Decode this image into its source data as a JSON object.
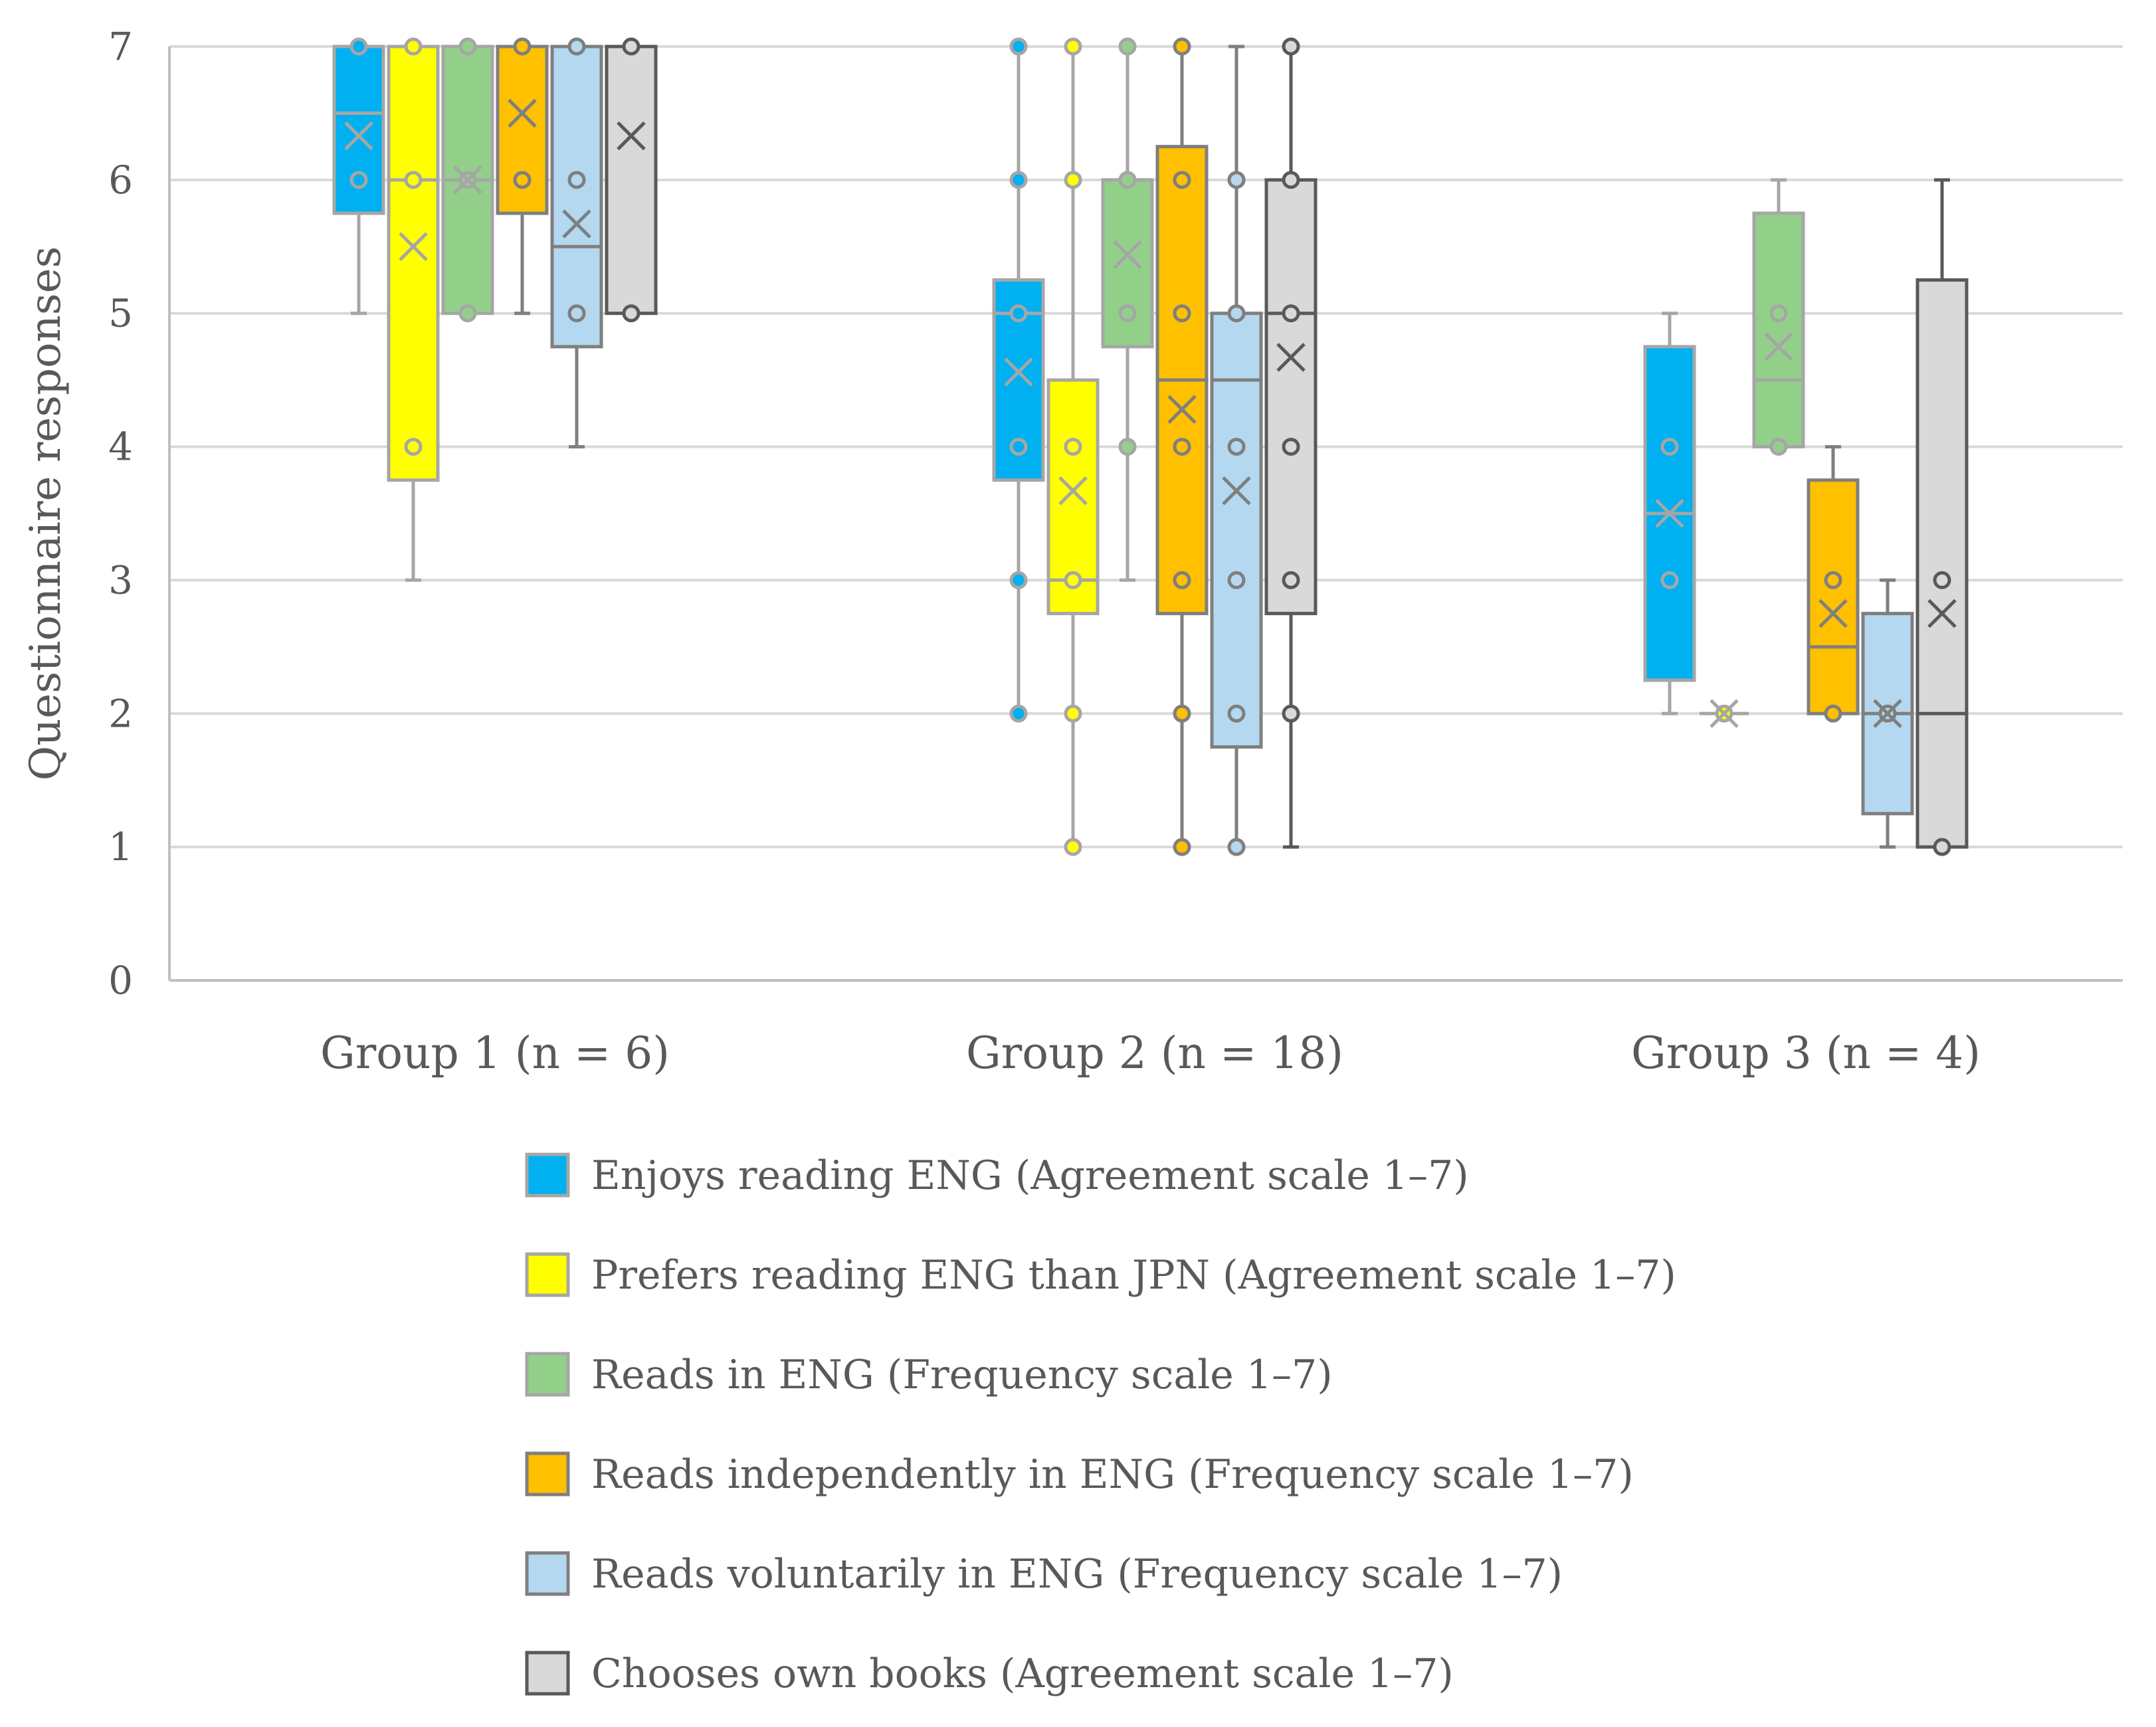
{
  "chart_data": {
    "type": "boxplot",
    "ylabel": "Questionnaire responses",
    "ylim": [
      0,
      7
    ],
    "yticks": [
      "0",
      "1",
      "2",
      "3",
      "4",
      "5",
      "6",
      "7"
    ],
    "grid": true,
    "legend_position": "bottom",
    "categories": [
      "Group 1 (n = 6)",
      "Group 2 (n = 18)",
      "Group 3 (n = 4)"
    ],
    "series": [
      {
        "name": "Enjoys reading ENG (Agreement scale 1–7)",
        "fill": "#00b0f0",
        "stroke": "#a6a6a6",
        "boxes": [
          {
            "q1": 5.75,
            "median": 6.5,
            "q3": 7,
            "mean": 6.33,
            "whisker_low": 5,
            "whisker_high": 7,
            "points": [
              7,
              6
            ]
          },
          {
            "q1": 3.75,
            "median": 5,
            "q3": 5.25,
            "mean": 4.56,
            "whisker_low": 2,
            "whisker_high": 7,
            "points": [
              7,
              6,
              5,
              4,
              3,
              2
            ]
          },
          {
            "q1": 2.25,
            "median": 3.5,
            "q3": 4.75,
            "mean": 3.5,
            "whisker_low": 2,
            "whisker_high": 5,
            "points": [
              4,
              3
            ]
          }
        ]
      },
      {
        "name": "Prefers reading ENG than JPN (Agreement scale 1–7)",
        "fill": "#ffff00",
        "stroke": "#a6a6a6",
        "boxes": [
          {
            "q1": 3.75,
            "median": 6,
            "q3": 7,
            "mean": 5.5,
            "whisker_low": 3,
            "whisker_high": 7,
            "points": [
              7,
              6,
              4
            ]
          },
          {
            "q1": 2.75,
            "median": 3,
            "q3": 4.5,
            "mean": 3.67,
            "whisker_low": 1,
            "whisker_high": 7,
            "points": [
              7,
              6,
              4,
              3,
              2,
              1
            ]
          },
          {
            "q1": 2,
            "median": 2,
            "q3": 2,
            "mean": 2,
            "whisker_low": 2,
            "whisker_high": 2,
            "points": [
              2
            ]
          }
        ]
      },
      {
        "name": "Reads in ENG (Frequency scale 1–7)",
        "fill": "#92d08a",
        "stroke": "#a6a6a6",
        "boxes": [
          {
            "q1": 5,
            "median": 6,
            "q3": 7,
            "mean": 6,
            "whisker_low": 5,
            "whisker_high": 7,
            "points": [
              7,
              6,
              5
            ]
          },
          {
            "q1": 4.75,
            "median": 6,
            "q3": 6,
            "mean": 5.44,
            "whisker_low": 3,
            "whisker_high": 7,
            "points": [
              7,
              6,
              5,
              4
            ]
          },
          {
            "q1": 4,
            "median": 4.5,
            "q3": 5.75,
            "mean": 4.75,
            "whisker_low": 4,
            "whisker_high": 6,
            "points": [
              5,
              4
            ]
          }
        ]
      },
      {
        "name": "Reads independently in ENG (Frequency scale 1–7)",
        "fill": "#ffc000",
        "stroke": "#7f7f7f",
        "boxes": [
          {
            "q1": 5.75,
            "median": 7,
            "q3": 7,
            "mean": 6.5,
            "whisker_low": 5,
            "whisker_high": 7,
            "points": [
              7,
              6
            ]
          },
          {
            "q1": 2.75,
            "median": 4.5,
            "q3": 6.25,
            "mean": 4.28,
            "whisker_low": 1,
            "whisker_high": 7,
            "points": [
              7,
              6,
              5,
              4,
              3,
              2,
              1
            ]
          },
          {
            "q1": 2,
            "median": 2.5,
            "q3": 3.75,
            "mean": 2.75,
            "whisker_low": 2,
            "whisker_high": 4,
            "points": [
              3,
              2
            ]
          }
        ]
      },
      {
        "name": "Reads voluntarily in ENG (Frequency scale 1–7)",
        "fill": "#b4d8ef",
        "stroke": "#7f7f7f",
        "boxes": [
          {
            "q1": 4.75,
            "median": 5.5,
            "q3": 7,
            "mean": 5.67,
            "whisker_low": 4,
            "whisker_high": 7,
            "points": [
              7,
              6,
              5
            ]
          },
          {
            "q1": 1.75,
            "median": 4.5,
            "q3": 5,
            "mean": 3.67,
            "whisker_low": 1,
            "whisker_high": 7,
            "points": [
              6,
              5,
              4,
              3,
              2,
              1
            ]
          },
          {
            "q1": 1.25,
            "median": 2,
            "q3": 2.75,
            "mean": 2,
            "whisker_low": 1,
            "whisker_high": 3,
            "points": [
              2
            ]
          }
        ]
      },
      {
        "name": "Chooses own books (Agreement scale 1–7)",
        "fill": "#d9d9d9",
        "stroke": "#595959",
        "boxes": [
          {
            "q1": 5,
            "median": 7,
            "q3": 7,
            "mean": 6.33,
            "whisker_low": 5,
            "whisker_high": 7,
            "points": [
              7,
              5
            ]
          },
          {
            "q1": 2.75,
            "median": 5,
            "q3": 6,
            "mean": 4.67,
            "whisker_low": 1,
            "whisker_high": 7,
            "points": [
              7,
              6,
              5,
              4,
              3,
              2
            ]
          },
          {
            "q1": 1,
            "median": 2,
            "q3": 5.25,
            "mean": 2.75,
            "whisker_low": 1,
            "whisker_high": 6,
            "points": [
              3,
              1
            ]
          }
        ]
      }
    ]
  }
}
